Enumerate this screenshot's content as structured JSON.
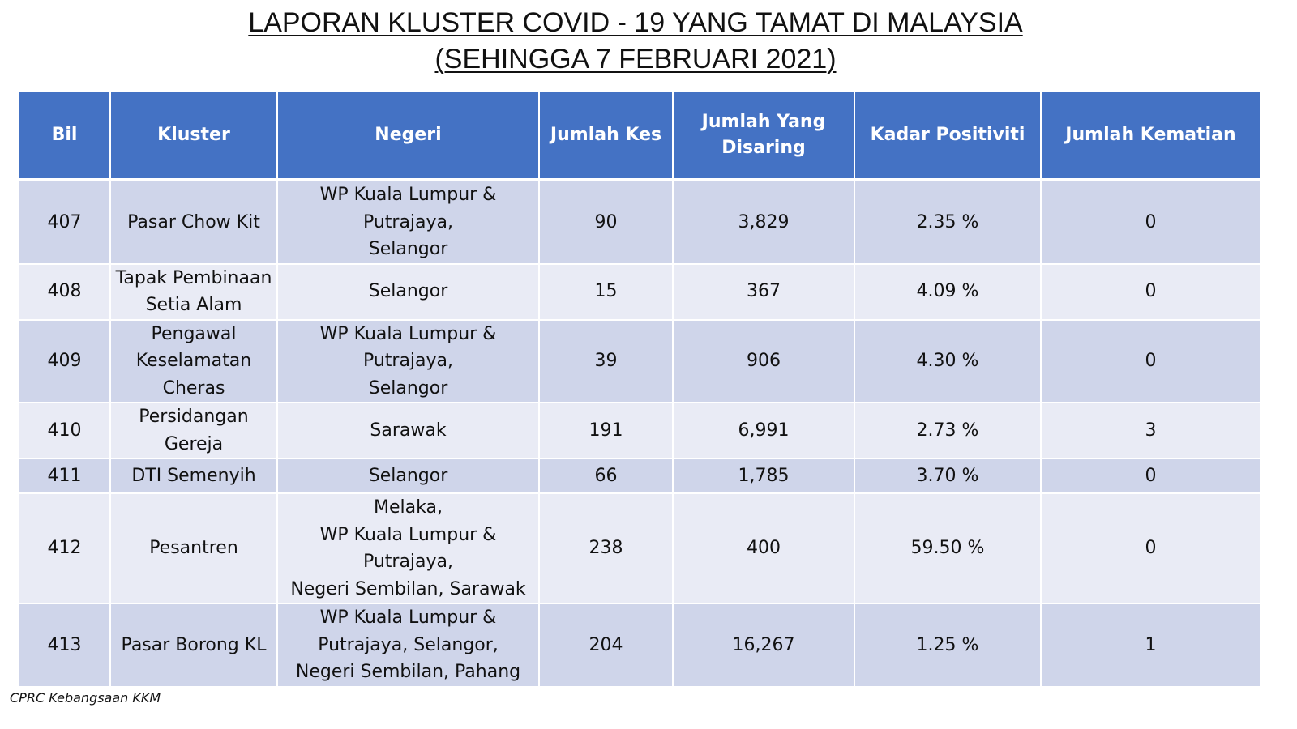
{
  "title": {
    "line1": "LAPORAN KLUSTER COVID - 19 YANG TAMAT DI MALAYSIA",
    "line2": "(SEHINGGA 7 FEBRUARI 2021)"
  },
  "table": {
    "headers": {
      "bil": "Bil",
      "kluster": "Kluster",
      "negeri": "Negeri",
      "jumlah_kes": "Jumlah Kes",
      "disaring_line1": "Jumlah Yang",
      "disaring_line2": "Disaring",
      "kadar_positiviti": "Kadar Positiviti",
      "jumlah_kematian": "Jumlah Kematian"
    },
    "rows": [
      {
        "bil": "407",
        "kluster": [
          "Pasar Chow Kit"
        ],
        "negeri": [
          "WP Kuala Lumpur &",
          "Putrajaya,",
          "Selangor"
        ],
        "jumlah_kes": "90",
        "jumlah_disaring": "3,829",
        "kadar_positiviti": "2.35 %",
        "jumlah_kematian": "0"
      },
      {
        "bil": "408",
        "kluster": [
          "Tapak Pembinaan",
          "Setia Alam"
        ],
        "negeri": [
          "Selangor"
        ],
        "jumlah_kes": "15",
        "jumlah_disaring": "367",
        "kadar_positiviti": "4.09 %",
        "jumlah_kematian": "0"
      },
      {
        "bil": "409",
        "kluster": [
          "Pengawal",
          "Keselamatan",
          "Cheras"
        ],
        "negeri": [
          "WP Kuala Lumpur &",
          "Putrajaya,",
          "Selangor"
        ],
        "jumlah_kes": "39",
        "jumlah_disaring": "906",
        "kadar_positiviti": "4.30 %",
        "jumlah_kematian": "0"
      },
      {
        "bil": "410",
        "kluster": [
          "Persidangan",
          "Gereja"
        ],
        "negeri": [
          "Sarawak"
        ],
        "jumlah_kes": "191",
        "jumlah_disaring": "6,991",
        "kadar_positiviti": "2.73 %",
        "jumlah_kematian": "3"
      },
      {
        "bil": "411",
        "kluster": [
          "DTI Semenyih"
        ],
        "negeri": [
          "Selangor"
        ],
        "jumlah_kes": "66",
        "jumlah_disaring": "1,785",
        "kadar_positiviti": "3.70 %",
        "jumlah_kematian": "0"
      },
      {
        "bil": "412",
        "kluster": [
          "Pesantren"
        ],
        "negeri": [
          "Melaka,",
          "WP Kuala Lumpur &",
          "Putrajaya,",
          "Negeri Sembilan, Sarawak"
        ],
        "jumlah_kes": "238",
        "jumlah_disaring": "400",
        "kadar_positiviti": "59.50 %",
        "jumlah_kematian": "0"
      },
      {
        "bil": "413",
        "kluster": [
          "Pasar Borong KL"
        ],
        "negeri": [
          "WP Kuala Lumpur &",
          "Putrajaya,  Selangor,",
          "Negeri Sembilan, Pahang"
        ],
        "jumlah_kes": "204",
        "jumlah_disaring": "16,267",
        "kadar_positiviti": "1.25 %",
        "jumlah_kematian": "1"
      }
    ]
  },
  "source": "CPRC Kebangsaan KKM",
  "colors": {
    "header_bg": "#4472c4",
    "row_dark": "#cfd5ea",
    "row_light": "#e9ebf5"
  }
}
